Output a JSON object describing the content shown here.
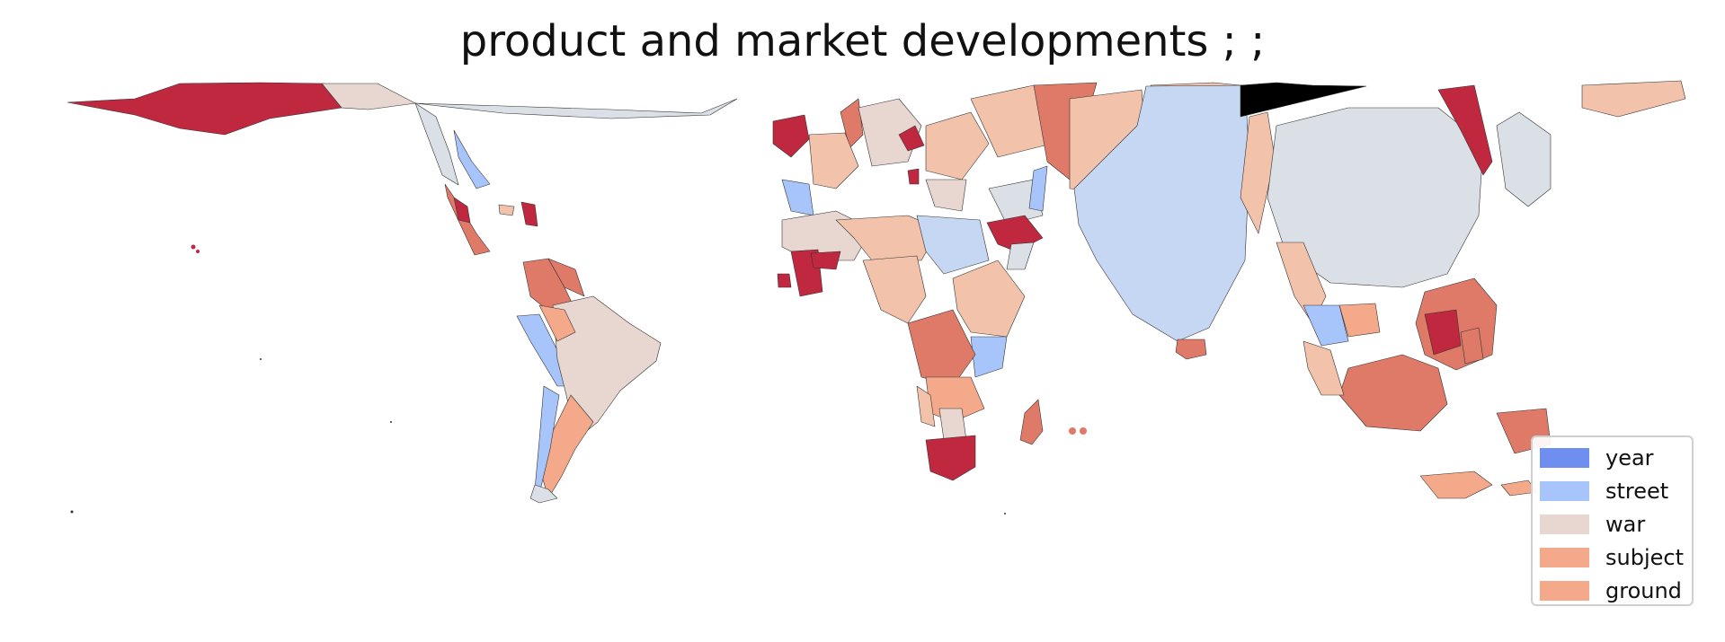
{
  "title": "product and market developments ; ;",
  "colors": {
    "year": "#6f8ff0",
    "street": "#a7c4fb",
    "war": "#e8d7d0",
    "subject": "#f4a98a",
    "ground": "#f4a98a",
    "dark_red": "#c0283f",
    "salmon": "#e07a68",
    "light_blue": "#c6d7f4",
    "grey_blue": "#dbdfe6",
    "peach": "#f3c2ab"
  },
  "legend": {
    "items": [
      {
        "label": "year",
        "color": "#6f8ff0"
      },
      {
        "label": "street",
        "color": "#a7c4fb"
      },
      {
        "label": "war",
        "color": "#e8d7d0"
      },
      {
        "label": "subject",
        "color": "#f4a98a"
      },
      {
        "label": "ground",
        "color": "#f4a98a"
      }
    ]
  }
}
